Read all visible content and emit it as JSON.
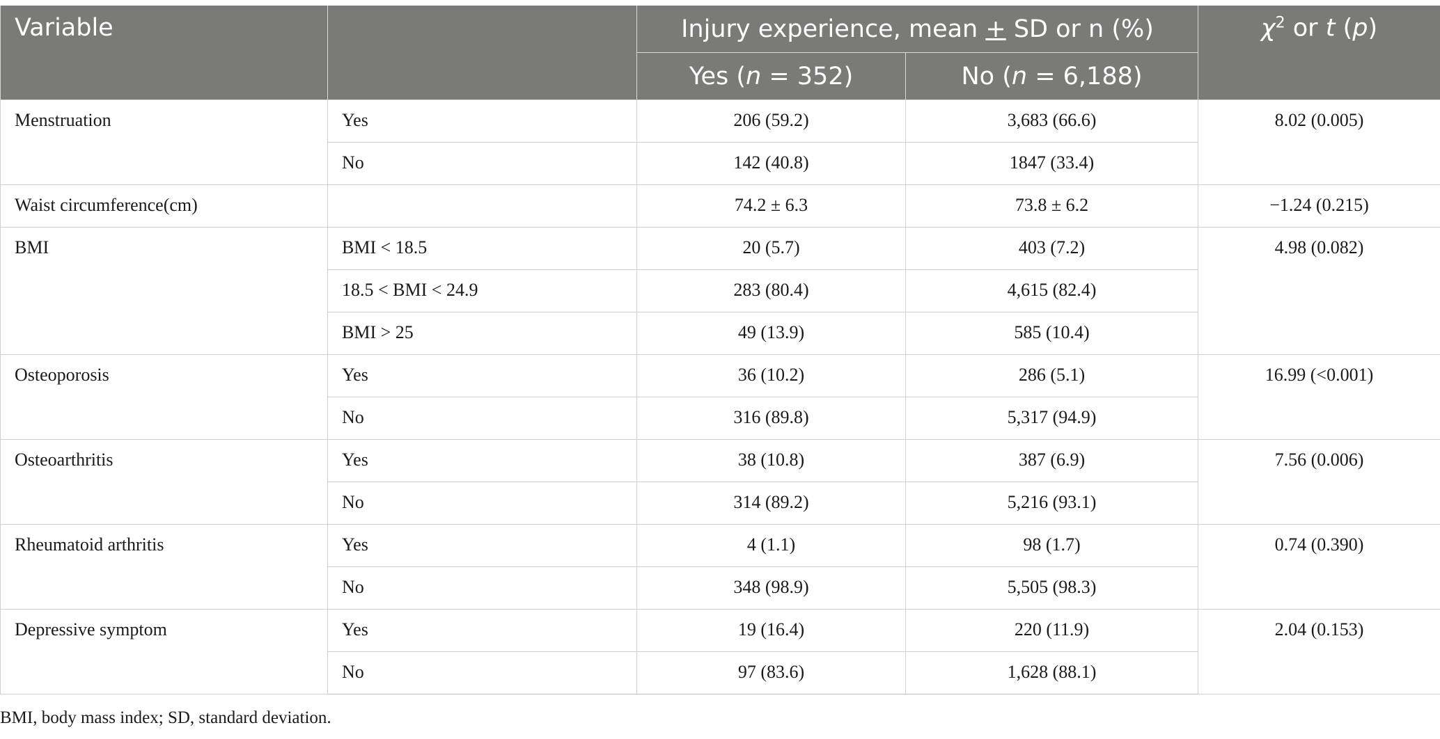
{
  "header": {
    "variable": "Variable",
    "group_title_pre": "Injury experience, mean ",
    "group_title_pm": "+",
    "group_title_post": " SD or n (%)",
    "yes_pre": "Yes (",
    "yes_n": "n",
    "yes_post": " = 352)",
    "no_pre": "No (",
    "no_n": "n",
    "no_post": " = 6,188)",
    "stat_chi": "χ",
    "stat_sup": "2",
    "stat_mid": " or ",
    "stat_t": "t",
    "stat_open": " (",
    "stat_p": "p",
    "stat_close": ")"
  },
  "rows": [
    {
      "variable": "Menstruation",
      "sub": "Yes",
      "yes": "206 (59.2)",
      "no": "3,683 (66.6)",
      "stat": "8.02 (0.005)"
    },
    {
      "variable": "",
      "sub": "No",
      "yes": "142 (40.8)",
      "no": "1847 (33.4)",
      "stat": ""
    },
    {
      "variable": "Waist circumference(cm)",
      "sub": "",
      "yes": "74.2 ± 6.3",
      "no": "73.8 ± 6.2",
      "stat": "−1.24 (0.215)"
    },
    {
      "variable": "BMI",
      "sub": "BMI < 18.5",
      "yes": "20 (5.7)",
      "no": "403 (7.2)",
      "stat": "4.98 (0.082)"
    },
    {
      "variable": "",
      "sub": "18.5 < BMI < 24.9",
      "yes": "283 (80.4)",
      "no": "4,615 (82.4)",
      "stat": ""
    },
    {
      "variable": "",
      "sub": "BMI > 25",
      "yes": "49 (13.9)",
      "no": "585 (10.4)",
      "stat": ""
    },
    {
      "variable": "Osteoporosis",
      "sub": "Yes",
      "yes": "36 (10.2)",
      "no": "286 (5.1)",
      "stat": "16.99 (<0.001)"
    },
    {
      "variable": "",
      "sub": "No",
      "yes": "316 (89.8)",
      "no": "5,317 (94.9)",
      "stat": ""
    },
    {
      "variable": "Osteoarthritis",
      "sub": "Yes",
      "yes": "38 (10.8)",
      "no": "387 (6.9)",
      "stat": "7.56 (0.006)"
    },
    {
      "variable": "",
      "sub": "No",
      "yes": "314 (89.2)",
      "no": "5,216 (93.1)",
      "stat": ""
    },
    {
      "variable": "Rheumatoid arthritis",
      "sub": "Yes",
      "yes": "4 (1.1)",
      "no": "98 (1.7)",
      "stat": "0.74 (0.390)"
    },
    {
      "variable": "",
      "sub": "No",
      "yes": "348 (98.9)",
      "no": "5,505 (98.3)",
      "stat": ""
    },
    {
      "variable": "Depressive symptom",
      "sub": "Yes",
      "yes": "19 (16.4)",
      "no": "220 (11.9)",
      "stat": "2.04 (0.153)"
    },
    {
      "variable": "",
      "sub": "No",
      "yes": "97 (83.6)",
      "no": "1,628 (88.1)",
      "stat": ""
    }
  ],
  "footnote": "BMI, body mass index; SD, standard deviation."
}
